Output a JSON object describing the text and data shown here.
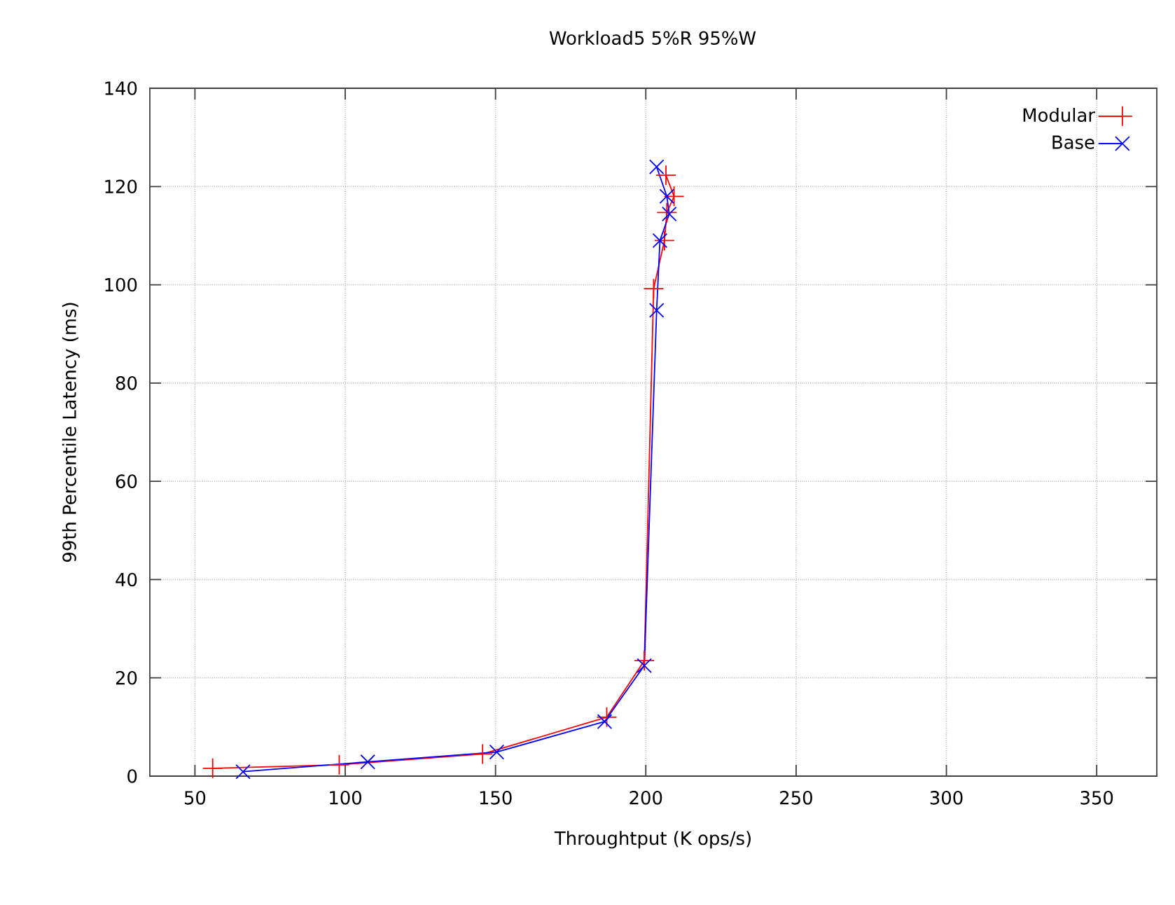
{
  "chart_data": {
    "type": "line",
    "title": "Workload5 5%R 95%W",
    "xlabel": "Throughtput (K ops/s)",
    "ylabel": "99th Percentile Latency (ms)",
    "xlim": [
      35,
      370
    ],
    "ylim": [
      0,
      140
    ],
    "xticks": [
      50,
      100,
      150,
      200,
      250,
      300,
      350
    ],
    "yticks": [
      0,
      20,
      40,
      60,
      80,
      100,
      120,
      140
    ],
    "grid": true,
    "legend": "top right",
    "line_style": "solid",
    "series": [
      {
        "name": "Modular",
        "color": "#ff0000",
        "marker": "plus",
        "x": [
          55.9,
          98,
          145.7,
          187,
          199.5,
          202.6,
          206.2,
          207,
          209.4,
          206.7
        ],
        "values": [
          1.6,
          2.3,
          4.5,
          12,
          23.5,
          99.2,
          109,
          114.7,
          118,
          122.3
        ]
      },
      {
        "name": "Base",
        "color": "#0000ff",
        "marker": "cross",
        "x": [
          66,
          107.5,
          150.4,
          186.3,
          199.5,
          203.6,
          204.7,
          207.8,
          207,
          203.6
        ],
        "values": [
          0.9,
          2.9,
          4.9,
          11.1,
          22.5,
          94.8,
          109,
          114.4,
          118,
          124
        ]
      }
    ]
  }
}
